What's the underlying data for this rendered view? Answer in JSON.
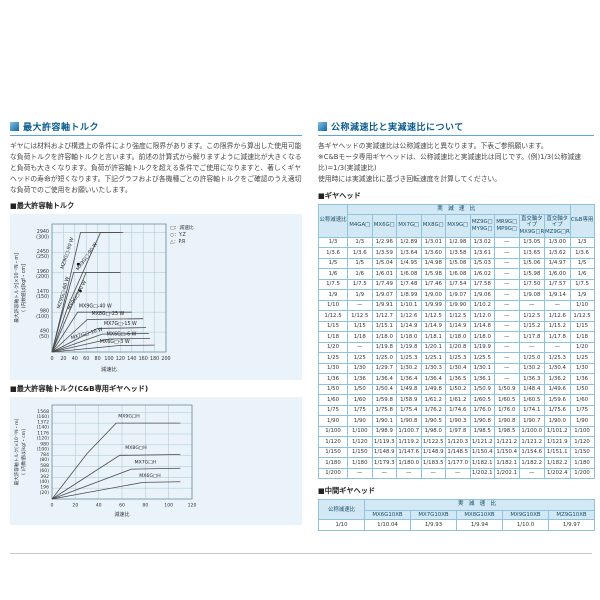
{
  "left": {
    "section_title": "最大許容軸トルク",
    "intro": "ギヤには材料および構造上の条件により強度に限界があります。この限界から算出した使用可能な負荷トルクを許容軸トルクと言います。前述の計算式から解りますように減速比が大きくなると負荷も大きくなります。負荷が許容軸トルクを超える条件でご使用になりますと、著しくギヤヘッドの寿命が短くなります。下記グラフおよび各機種ごとの許容軸トルクをご確認のうえ適切な負荷でのご使用をお願いいたします。",
    "chart1_heading": "■最大許容軸トルク",
    "chart2_heading": "■最大許容軸トルク(C&B専用ギヤヘッド)"
  },
  "right": {
    "section_title": "公称減速比と実減速比について",
    "intro_lines": [
      "各ギヤヘッドの実減速比は公称減速比と異なります。下表ご参照願います。",
      "※C&Bモータ専用ギヤヘッドは、公称減速比と実減速比は同じです。(例)1/3(公称減速比)=1/3(実減速比)",
      "使用時には実減速比に基づき回転速度を計算してください。"
    ],
    "table1_heading": "■ギヤヘッド",
    "table2_heading": "■中間ギヤヘッド"
  },
  "gearhead_table": {
    "ratio_header": "公称減速比",
    "actual_header": "実減速比",
    "cb_header": "C&B専用",
    "model_headers": [
      "M4GA□",
      "MX6G□",
      "MX7G□",
      "MX8G□",
      "MX9G□",
      "MZ9G□\nMY9G□",
      "MR9G□\nMP9G□",
      "直交軸タイプ\nMX9G□R",
      "直交軸タイプ\nMZ9G□R"
    ],
    "rows": [
      [
        "1/3",
        "1/3",
        "1/2.96",
        "1/2.89",
        "1/3.01",
        "1/2.98",
        "1/3.02",
        "—",
        "1/3.05",
        "1/3.00",
        "1/3"
      ],
      [
        "1/3.6",
        "1/3.6",
        "1/3.59",
        "1/3.64",
        "1/3.60",
        "1/3.58",
        "1/3.61",
        "—",
        "1/3.65",
        "1/3.62",
        "1/3.6"
      ],
      [
        "1/5",
        "1/5",
        "1/5.04",
        "1/4.95",
        "1/4.98",
        "1/5.08",
        "1/5.03",
        "—",
        "1/5.06",
        "1/4.97",
        "1/5"
      ],
      [
        "1/6",
        "1/6",
        "1/6.01",
        "1/6.08",
        "1/5.98",
        "1/6.08",
        "1/6.02",
        "—",
        "1/5.98",
        "1/6.00",
        "1/6"
      ],
      [
        "1/7.5",
        "1/7.5",
        "1/7.49",
        "1/7.48",
        "1/7.46",
        "1/7.54",
        "1/7.58",
        "—",
        "1/7.50",
        "1/7.57",
        "1/7.5"
      ],
      [
        "1/9",
        "1/9",
        "1/9.07",
        "1/8.99",
        "1/9.00",
        "1/9.07",
        "1/9.06",
        "—",
        "1/9.08",
        "1/9.14",
        "1/9"
      ],
      [
        "1/10",
        "—",
        "1/9.91",
        "1/10.1",
        "1/9.99",
        "1/9.90",
        "1/10.2",
        "—",
        "—",
        "—",
        "1/10"
      ],
      [
        "1/12.5",
        "1/12.5",
        "1/12.7",
        "1/12.6",
        "1/12.5",
        "1/12.5",
        "1/12.0",
        "—",
        "1/12.5",
        "1/12.6",
        "1/12.5"
      ],
      [
        "1/15",
        "1/15",
        "1/15.1",
        "1/14.9",
        "1/14.9",
        "1/14.9",
        "1/14.8",
        "—",
        "1/15.2",
        "1/15.2",
        "1/15"
      ],
      [
        "1/18",
        "1/18",
        "1/18.0",
        "1/18.0",
        "1/18.1",
        "1/18.0",
        "1/18.0",
        "—",
        "1/17.8",
        "1/17.8",
        "1/18"
      ],
      [
        "1/20",
        "—",
        "1/19.8",
        "1/19.8",
        "1/20.1",
        "1/20.8",
        "1/19.9",
        "—",
        "—",
        "—",
        "1/20"
      ],
      [
        "1/25",
        "1/25",
        "1/25.0",
        "1/25.3",
        "1/25.1",
        "1/25.3",
        "1/25.5",
        "—",
        "1/25.0",
        "1/25.3",
        "1/25"
      ],
      [
        "1/30",
        "1/30",
        "1/29.7",
        "1/30.2",
        "1/30.3",
        "1/30.4",
        "1/30.1",
        "—",
        "1/30.2",
        "1/30.4",
        "1/30"
      ],
      [
        "1/36",
        "1/36",
        "1/36.4",
        "1/36.4",
        "1/36.4",
        "1/36.5",
        "1/36.1",
        "—",
        "1/36.3",
        "1/36.2",
        "1/36"
      ],
      [
        "1/50",
        "1/50",
        "1/50.4",
        "1/49.8",
        "1/49.8",
        "1/50.2",
        "1/50.9",
        "1/50.9",
        "1/48.4",
        "1/49.6",
        "1/50"
      ],
      [
        "1/60",
        "1/60",
        "1/59.8",
        "1/58.9",
        "1/61.2",
        "1/61.2",
        "1/60.5",
        "1/60.5",
        "1/60.5",
        "1/59.6",
        "1/60"
      ],
      [
        "1/75",
        "1/75",
        "1/75.8",
        "1/75.4",
        "1/76.2",
        "1/74.6",
        "1/76.0",
        "1/76.0",
        "1/74.1",
        "1/75.6",
        "1/75"
      ],
      [
        "1/90",
        "1/90",
        "1/90.1",
        "1/90.8",
        "1/90.5",
        "1/90.3",
        "1/90.8",
        "1/90.8",
        "1/90.7",
        "1/90.0",
        "1/90"
      ],
      [
        "1/100",
        "1/100",
        "1/98.9",
        "1/100.7",
        "1/98.0",
        "1/97.8",
        "1/98.5",
        "1/98.5",
        "1/100.0",
        "1/101.2",
        "1/100"
      ],
      [
        "1/120",
        "1/120",
        "1/119.3",
        "1/119.2",
        "1/122.5",
        "1/120.3",
        "1/121.2",
        "1/121.2",
        "1/121.2",
        "1/121.9",
        "1/120"
      ],
      [
        "1/150",
        "1/150",
        "1/148.9",
        "1/147.6",
        "1/148.9",
        "1/148.5",
        "1/150.4",
        "1/150.4",
        "1/154.6",
        "1/151.1",
        "1/150"
      ],
      [
        "1/180",
        "1/180",
        "1/179.3",
        "1/180.0",
        "1/183.5",
        "1/177.0",
        "1/182.1",
        "1/182.1",
        "1/182.2",
        "1/182.2",
        "1/180"
      ],
      [
        "1/200",
        "—",
        "—",
        "—",
        "—",
        "—",
        "1/202.1",
        "1/202.1",
        "—",
        "1/202.4",
        "1/200"
      ]
    ]
  },
  "mid_gearhead_table": {
    "ratio_header": "公称減速比",
    "actual_header": "実減速比",
    "model_headers": [
      "MX6G10XB",
      "MX7G10XB",
      "MX8G10XB",
      "MX9G10XB",
      "MZ9G10XB"
    ],
    "rows": [
      [
        "1/10",
        "1/10.04",
        "1/9.93",
        "1/9.94",
        "1/10.0",
        "1/9.97"
      ]
    ]
  },
  "chart_data": [
    {
      "type": "line",
      "title": "最大許容軸トルク",
      "ylabel": "最大許容軸トルク[×10⁻²N・m]",
      "ylabel2": "( )内数値は[kgf・cm]",
      "xlabel": "減速比",
      "xlim": [
        0,
        200
      ],
      "ylim": [
        0,
        3150
      ],
      "xticks": [
        0,
        20,
        40,
        60,
        80,
        100,
        120,
        140,
        160,
        180,
        200
      ],
      "yticks": [
        {
          "v": 2940,
          "l1": "2940",
          "l2": "(300)"
        },
        {
          "v": 2450,
          "l1": "2450",
          "l2": "(250)"
        },
        {
          "v": 1960,
          "l1": "1960",
          "l2": "(200)"
        },
        {
          "v": 1470,
          "l1": "1470",
          "l2": "(150)"
        },
        {
          "v": 980,
          "l1": "980",
          "l2": "(100)"
        },
        {
          "v": 490,
          "l1": "490",
          "l2": "(50)"
        }
      ],
      "legend": [
        "□：減速比",
        "○：Y.Z",
        "△：P.R"
      ],
      "grid": true,
      "series": [
        {
          "name": "MZ9G□-90 W",
          "points": [
            [
              0,
              0
            ],
            [
              20,
              1150
            ],
            [
              50,
              2940
            ],
            [
              120,
              2940
            ]
          ],
          "lx": 29,
          "ly": 2420,
          "lr": -72
        },
        {
          "name": "MX9G□-90 W",
          "points": [
            [
              0,
              0
            ],
            [
              30,
              1200
            ],
            [
              85,
              2940
            ],
            [
              125,
              2940
            ]
          ],
          "lx": 63,
          "ly": 2330,
          "lr": -55
        },
        {
          "name": "MZ9G□-60 W",
          "points": [
            [
              0,
              0
            ],
            [
              18,
              950
            ],
            [
              38,
              1960
            ],
            [
              120,
              1960
            ]
          ],
          "lx": 22,
          "ly": 1450,
          "lr": -74
        },
        {
          "name": "MX9G□-60 W",
          "points": [
            [
              0,
              0
            ],
            [
              25,
              820
            ],
            [
              60,
              1960
            ],
            [
              120,
              1960
            ]
          ],
          "lx": 46,
          "ly": 1380,
          "lr": -60
        },
        {
          "name": "MX9G□-40 W",
          "points": [
            [
              0,
              0
            ],
            [
              45,
              980
            ],
            [
              140,
              980
            ]
          ],
          "lx": 76,
          "ly": 1090,
          "lr": 0
        },
        {
          "name": "MX8G□-25 W",
          "points": [
            [
              0,
              0
            ],
            [
              62,
              800
            ],
            [
              160,
              820
            ]
          ],
          "lx": 98,
          "ly": 905,
          "lr": 0
        },
        {
          "name": "MX7G□-15 W",
          "points": [
            [
              0,
              0
            ],
            [
              80,
              580
            ],
            [
              165,
              600
            ]
          ],
          "lx": 120,
          "ly": 665,
          "lr": 0
        },
        {
          "name": "MX7G□-10 W",
          "points": [
            [
              0,
              0
            ],
            [
              88,
              440
            ],
            [
              170,
              455
            ]
          ],
          "lx": 62,
          "ly": 420,
          "lr": -16
        },
        {
          "name": "MX6G□-6 W",
          "points": [
            [
              0,
              0
            ],
            [
              100,
              320
            ],
            [
              172,
              335
            ]
          ],
          "lx": 122,
          "ly": 400,
          "lr": 0
        },
        {
          "name": "MX6G□-3 W",
          "points": [
            [
              0,
              0
            ],
            [
              118,
              160
            ],
            [
              180,
              170
            ]
          ],
          "lx": 110,
          "ly": 225,
          "lr": 0
        }
      ],
      "markers": [
        {
          "x": 46,
          "y": 2160,
          "shape": "square"
        },
        {
          "x": 50,
          "y": 1500,
          "shape": "circle"
        }
      ]
    },
    {
      "type": "line",
      "title": "最大許容軸トルク(C&B専用ギヤヘッド)",
      "ylabel": "最大許容軸トルク[×10⁻²N・m]",
      "ylabel2": "( )内数値は[kgf・cm]",
      "xlabel": "減速比",
      "xlim": [
        0,
        120
      ],
      "ylim": [
        0,
        1700
      ],
      "xticks": [
        0,
        20,
        40,
        60,
        80,
        100,
        120
      ],
      "yticks": [
        {
          "v": 1568,
          "l1": "1568",
          "l2": "(160)"
        },
        {
          "v": 1372,
          "l1": "1372",
          "l2": "(140)"
        },
        {
          "v": 1176,
          "l1": "1176",
          "l2": "(120)"
        },
        {
          "v": 980,
          "l1": "980",
          "l2": "(100)"
        },
        {
          "v": 784,
          "l1": "784",
          "l2": "(80)"
        },
        {
          "v": 588,
          "l1": "588",
          "l2": "(60)"
        },
        {
          "v": 392,
          "l1": "392",
          "l2": "(40)"
        },
        {
          "v": 196,
          "l1": "196",
          "l2": "(20)"
        }
      ],
      "legend": [],
      "grid": true,
      "series": [
        {
          "name": "MX9G□H",
          "points": [
            [
              0,
              0
            ],
            [
              30,
              820
            ],
            [
              55,
              1372
            ],
            [
              110,
              1372
            ]
          ],
          "lx": 66,
          "ly": 1470,
          "lr": 0
        },
        {
          "name": "MX8G□H",
          "points": [
            [
              0,
              0
            ],
            [
              58,
              790
            ],
            [
              110,
              805
            ]
          ],
          "lx": 72,
          "ly": 900,
          "lr": 0
        },
        {
          "name": "MX7G□H",
          "points": [
            [
              0,
              0
            ],
            [
              68,
              540
            ],
            [
              110,
              556
            ]
          ],
          "lx": 80,
          "ly": 640,
          "lr": 0
        },
        {
          "name": "MX6G□H",
          "points": [
            [
              0,
              0
            ],
            [
              78,
              300
            ],
            [
              110,
              312
            ]
          ],
          "lx": 84,
          "ly": 395,
          "lr": 0
        }
      ],
      "markers": []
    }
  ]
}
